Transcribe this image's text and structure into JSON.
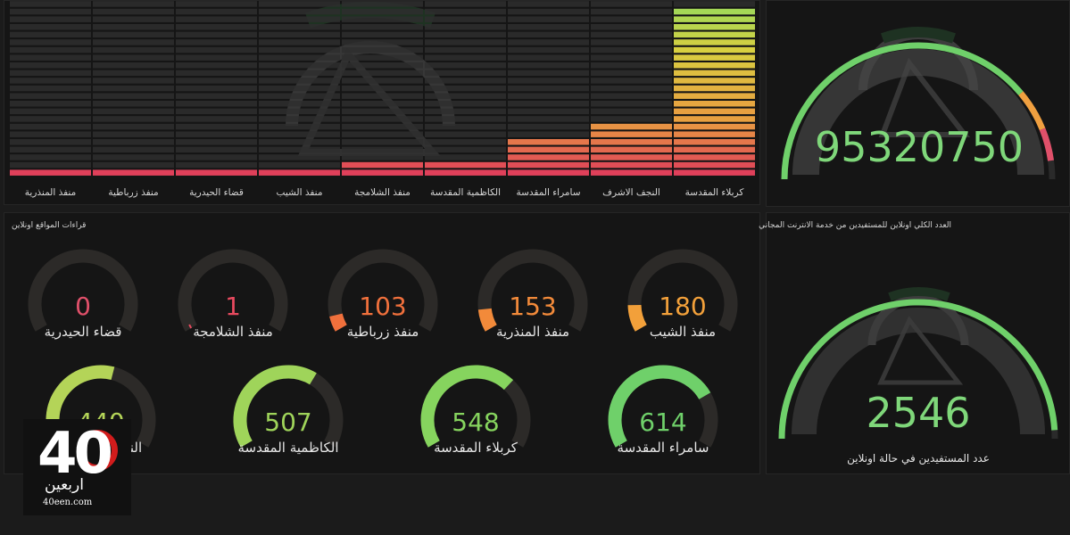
{
  "bar_chart": {
    "categories": [
      "منفذ المنذرية",
      "منفذ زرباطية",
      "قضاء الحيدرية",
      "منفذ الشيب",
      "منفذ الشلامجة",
      "الكاظمية المقدسة",
      "سامراء المقدسة",
      "النجف الاشرف",
      "كربلاء المقدسة"
    ],
    "levels": [
      1,
      1,
      1,
      1,
      2,
      2,
      5,
      7,
      22
    ]
  },
  "total_gauge": {
    "value": "95320750",
    "fraction": 0.93
  },
  "site_readings": {
    "title": "قراءات المواقع اونلاين",
    "gauges": [
      {
        "name": "منفذ الشيب",
        "value": "180",
        "color": "#f2a03a",
        "fraction": 0.12
      },
      {
        "name": "منفذ المنذرية",
        "value": "153",
        "color": "#f28a3a",
        "fraction": 0.1
      },
      {
        "name": "منفذ زرباطية",
        "value": "103",
        "color": "#f0703c",
        "fraction": 0.07
      },
      {
        "name": "منفذ الشلامجة",
        "value": "1",
        "color": "#e84a5f",
        "fraction": 0.005
      },
      {
        "name": "قضاء الحيدرية",
        "value": "0",
        "color": "#e0506a",
        "fraction": 0.0
      },
      {
        "name": "سامراء المقدسة",
        "value": "614",
        "color": "#6fd06a",
        "fraction": 0.75
      },
      {
        "name": "كربلاء المقدسة",
        "value": "548",
        "color": "#86d45e",
        "fraction": 0.68
      },
      {
        "name": "الكاظمية المقدسة",
        "value": "507",
        "color": "#9fd45a",
        "fraction": 0.63
      },
      {
        "name": "النجف الاشرف",
        "value": "440",
        "color": "#b4d458",
        "fraction": 0.56
      }
    ]
  },
  "online_panel": {
    "title": "العدد الكلي اونلاين للمستفيدين من خدمة الانترنت المجاني",
    "value": "2546",
    "label": "عدد المستفيدين في حالة اونلاين",
    "fraction": 0.98
  },
  "watermark": {
    "number": "40",
    "script": "اربعين",
    "url": "40een.com"
  },
  "colors": {
    "panel": "#151515",
    "track": "#2c2a28",
    "green": "#6fd06a",
    "red": "#e0506a"
  }
}
